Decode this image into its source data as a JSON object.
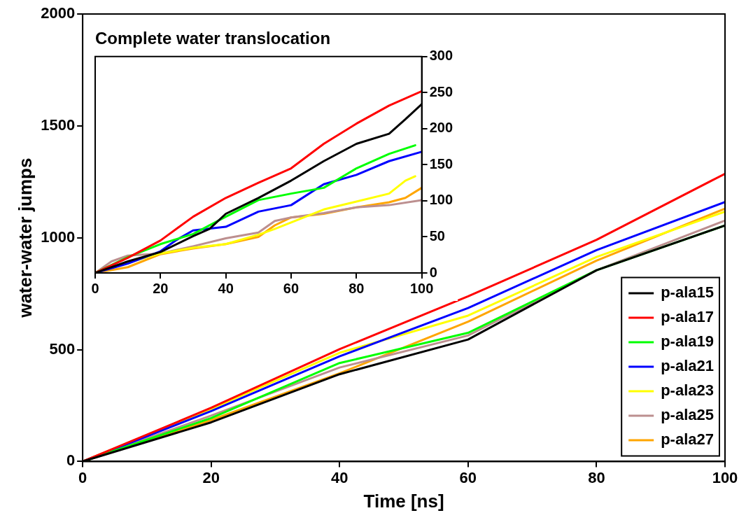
{
  "chart_data": [
    {
      "type": "line",
      "xlabel": "Time [ns]",
      "ylabel": "water-water jumps",
      "x": [
        0,
        20,
        40,
        60,
        80,
        100
      ],
      "xlim": [
        0,
        100
      ],
      "xticks": [
        0,
        20,
        40,
        60,
        80,
        100
      ],
      "ylim": [
        0,
        2000
      ],
      "yticks": [
        0,
        500,
        1000,
        1500,
        2000
      ],
      "grid": false,
      "legend": "bottom right",
      "marker": "none",
      "line_style": "solid",
      "series": [
        {
          "name": "p-ala15",
          "color": "#000000",
          "values": [
            0,
            175,
            390,
            545,
            855,
            1055
          ]
        },
        {
          "name": "p-ala17",
          "color": "#ff0000",
          "values": [
            0,
            240,
            502,
            738,
            991,
            1286
          ]
        },
        {
          "name": "p-ala19",
          "color": "#00ff00",
          "values": [
            0,
            194,
            440,
            575,
            855,
            1055
          ]
        },
        {
          "name": "p-ala21",
          "color": "#0000ff",
          "values": [
            0,
            225,
            470,
            686,
            945,
            1160
          ]
        },
        {
          "name": "p-ala23",
          "color": "#ffff00",
          "values": [
            0,
            235,
            486,
            652,
            914,
            1117
          ]
        },
        {
          "name": "p-ala25",
          "color": "#bc8f8f",
          "values": [
            0,
            205,
            420,
            563,
            855,
            1077
          ]
        },
        {
          "name": "p-ala27",
          "color": "#ffa500",
          "values": [
            0,
            185,
            394,
            625,
            898,
            1130
          ]
        }
      ]
    },
    {
      "type": "line",
      "title": "Complete water translocation",
      "xlim": [
        0,
        100
      ],
      "xticks": [
        0,
        20,
        40,
        60,
        80,
        100
      ],
      "y2lim": [
        0,
        300
      ],
      "y2ticks": [
        0,
        50,
        100,
        150,
        200,
        250,
        300
      ],
      "grid": false,
      "marker": "none",
      "line_style": "solid",
      "series": [
        {
          "color": "#000000",
          "axis": "y2",
          "x": [
            0,
            10,
            20,
            30,
            35,
            40,
            50,
            60,
            70,
            80,
            90,
            95,
            100
          ],
          "values": [
            0,
            16,
            29,
            51,
            61,
            82,
            104,
            128,
            155,
            179,
            193,
            213,
            234
          ]
        },
        {
          "color": "#ff0000",
          "axis": "y2",
          "x": [
            0,
            10,
            20,
            30,
            40,
            50,
            60,
            70,
            80,
            90,
            100
          ],
          "values": [
            0,
            21,
            45,
            78,
            104,
            125,
            145,
            179,
            207,
            232,
            252
          ]
        },
        {
          "color": "#00ff00",
          "axis": "y2",
          "x": [
            0,
            10,
            20,
            30,
            40,
            50,
            60,
            70,
            80,
            90,
            98
          ],
          "values": [
            0,
            22,
            40,
            54,
            78,
            101,
            110,
            118,
            145,
            165,
            177
          ]
        },
        {
          "color": "#0000ff",
          "axis": "y2",
          "x": [
            0,
            10,
            20,
            25,
            30,
            40,
            50,
            60,
            70,
            80,
            90,
            100
          ],
          "values": [
            0,
            13,
            30,
            46,
            59,
            64,
            85,
            94,
            123,
            136,
            155,
            168
          ]
        },
        {
          "color": "#ffff00",
          "axis": "y2",
          "x": [
            0,
            10,
            20,
            30,
            40,
            50,
            55,
            60,
            70,
            80,
            90,
            95,
            98
          ],
          "values": [
            0,
            14,
            27,
            35,
            40,
            53,
            61,
            70,
            88,
            99,
            110,
            128,
            134
          ]
        },
        {
          "color": "#bc8f8f",
          "axis": "y2",
          "x": [
            0,
            5,
            10,
            20,
            30,
            40,
            50,
            55,
            60,
            70,
            80,
            90,
            100
          ],
          "values": [
            0,
            16,
            24,
            27,
            37,
            48,
            56,
            72,
            77,
            83,
            91,
            94,
            101
          ]
        },
        {
          "color": "#ffa500",
          "axis": "y2",
          "x": [
            0,
            10,
            20,
            30,
            40,
            50,
            55,
            60,
            70,
            80,
            90,
            95,
            100
          ],
          "values": [
            0,
            8,
            26,
            34,
            40,
            50,
            66,
            77,
            82,
            91,
            98,
            104,
            118
          ]
        }
      ]
    }
  ]
}
